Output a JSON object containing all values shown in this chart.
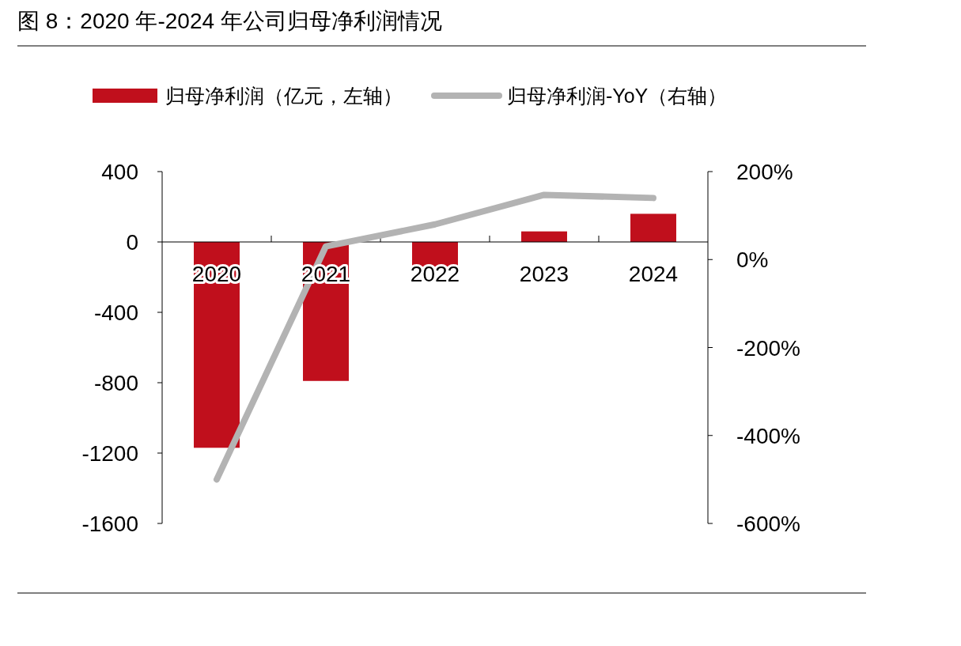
{
  "chart_data": {
    "type": "bar",
    "title": "图 8：2020 年-2024 年公司归母净利润情况",
    "categories": [
      "2020",
      "2021",
      "2022",
      "2023",
      "2024"
    ],
    "series": [
      {
        "name": "归母净利润（亿元，左轴）",
        "color": "#c00f1c",
        "values": [
          -1170,
          -790,
          -140,
          60,
          160
        ]
      },
      {
        "name": "归母净利润-YoY（右轴）",
        "type": "line",
        "axis": "y2",
        "color": "#b3b3b3",
        "values": [
          -500,
          30,
          80,
          147,
          140
        ]
      }
    ],
    "ylim": [
      -1600,
      400
    ],
    "yticks": [
      -1600,
      -1200,
      -800,
      -400,
      0,
      400
    ],
    "y2lim": [
      -600,
      200
    ],
    "y2ticks": [
      {
        "value": -600,
        "label": "-600%"
      },
      {
        "value": -400,
        "label": "-400%"
      },
      {
        "value": -200,
        "label": "-200%"
      },
      {
        "value": 0,
        "label": "0%"
      },
      {
        "value": 200,
        "label": "200%"
      }
    ],
    "legend": "top",
    "grid": false,
    "marker": "none",
    "line_style": "solid"
  }
}
